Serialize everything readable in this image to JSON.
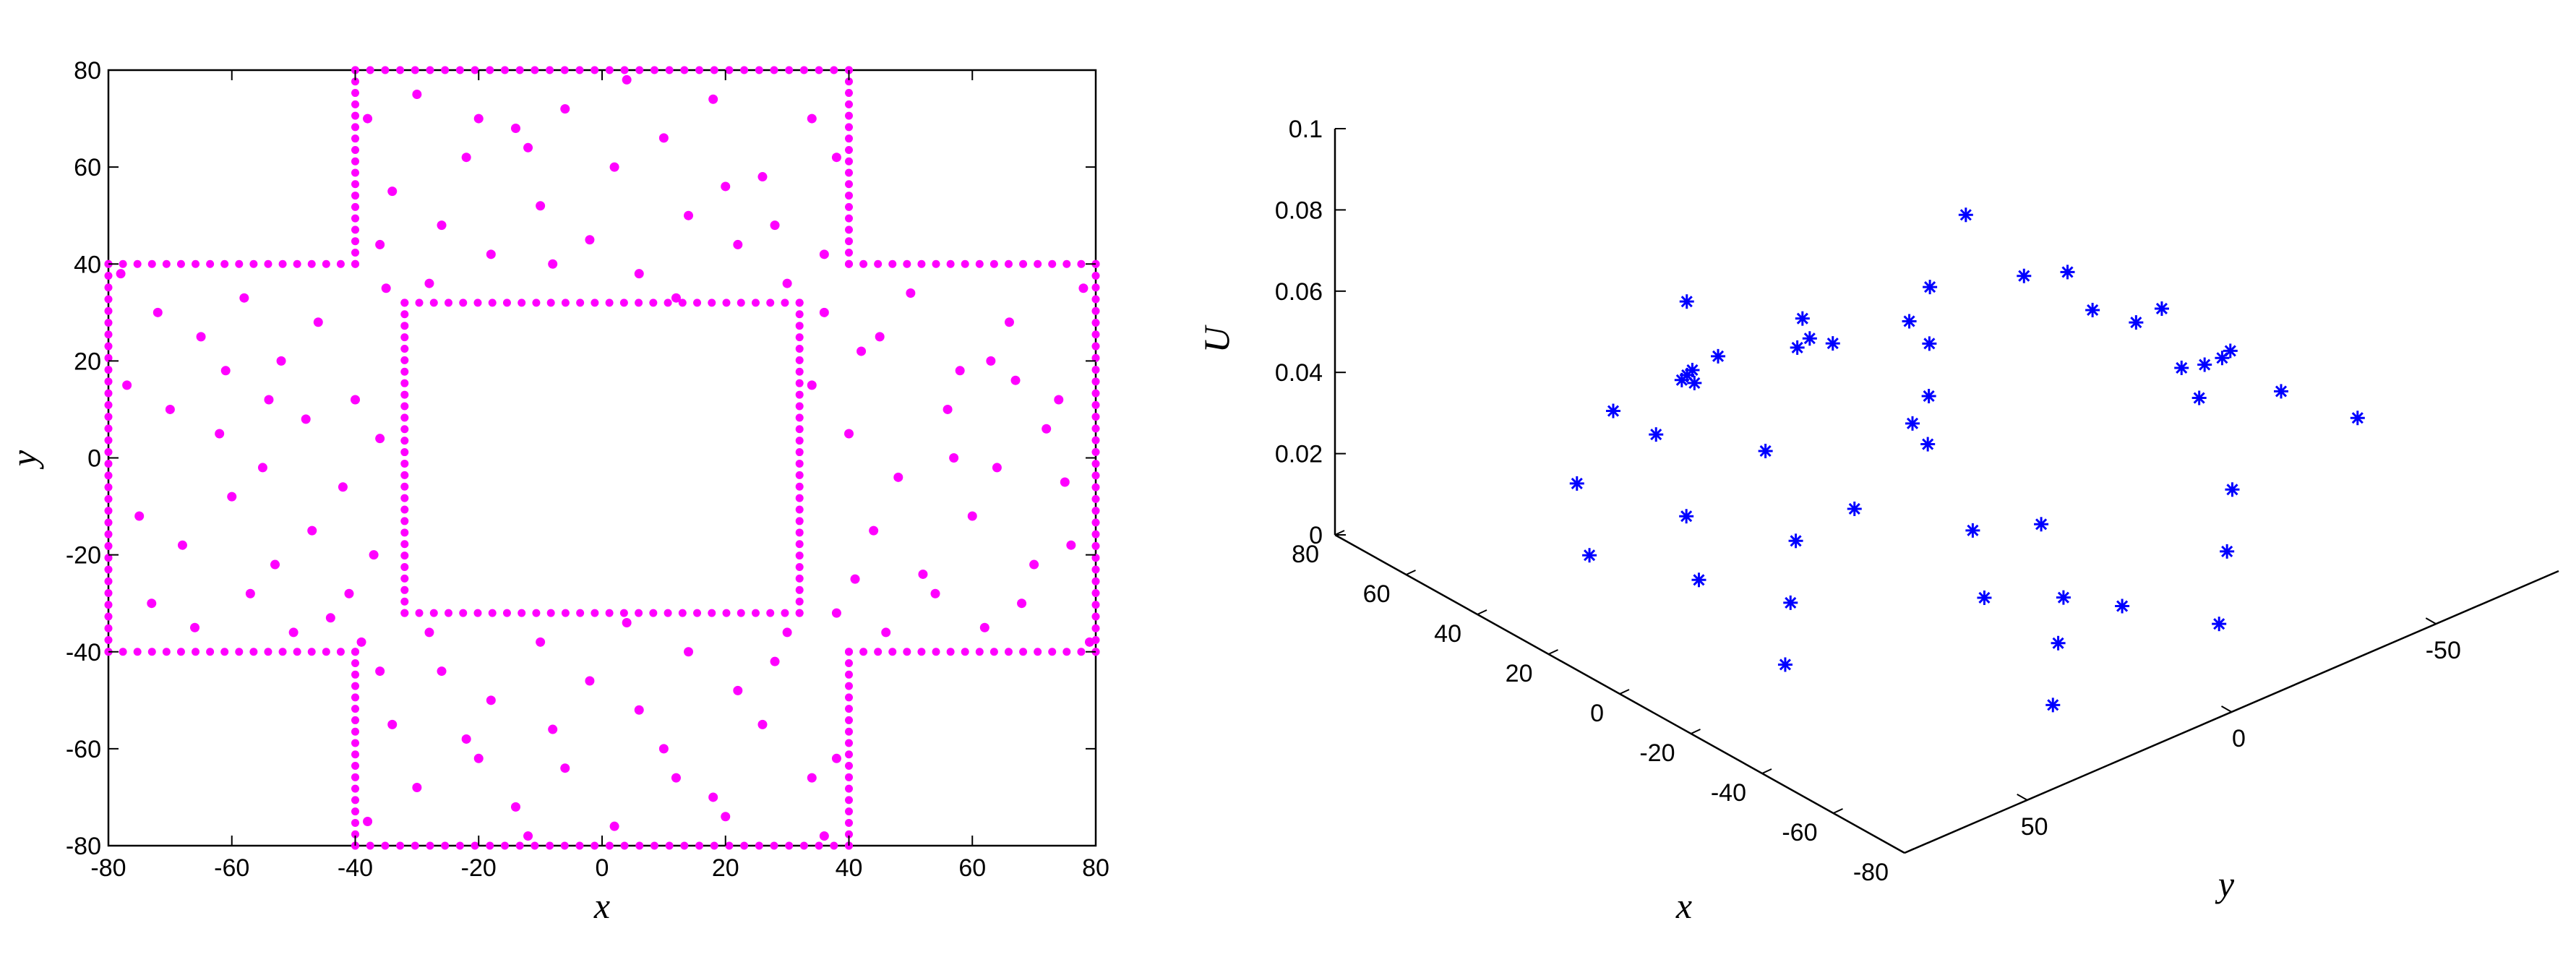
{
  "chart_data": [
    {
      "type": "scatter",
      "title": "",
      "xlabel": "x",
      "ylabel": "y",
      "xlim": [
        -80,
        80
      ],
      "ylim": [
        -80,
        80
      ],
      "xticks": [
        "-80",
        "-60",
        "-40",
        "-20",
        "0",
        "20",
        "40",
        "60",
        "80"
      ],
      "yticks": [
        "-80",
        "-60",
        "-40",
        "-20",
        "0",
        "20",
        "40",
        "60",
        "80"
      ],
      "grid": false,
      "marker": "dot",
      "color": "#ff00ff",
      "domain": "cross-shaped region |x|≤40,|y|≤80 ∪ |x|≤80,|y|≤40 with square hole |x|<32,|y|<32",
      "series": [
        {
          "points": [
            [
              -78,
              38
            ],
            [
              -72,
              30
            ],
            [
              -65,
              25
            ],
            [
              -58,
              33
            ],
            [
              -52,
              20
            ],
            [
              -46,
              28
            ],
            [
              -40,
              12
            ],
            [
              -35,
              35
            ],
            [
              -70,
              10
            ],
            [
              -62,
              5
            ],
            [
              -55,
              -2
            ],
            [
              -48,
              8
            ],
            [
              -42,
              -6
            ],
            [
              -36,
              4
            ],
            [
              -75,
              -12
            ],
            [
              -68,
              -18
            ],
            [
              -60,
              -8
            ],
            [
              -53,
              -22
            ],
            [
              -47,
              -15
            ],
            [
              -41,
              -28
            ],
            [
              -37,
              -20
            ],
            [
              -73,
              -30
            ],
            [
              -66,
              -35
            ],
            [
              -57,
              -28
            ],
            [
              -50,
              -36
            ],
            [
              -44,
              -33
            ],
            [
              -39,
              -38
            ],
            [
              -77,
              15
            ],
            [
              -61,
              18
            ],
            [
              -54,
              12
            ],
            [
              -38,
              70
            ],
            [
              -30,
              75
            ],
            [
              -22,
              62
            ],
            [
              -14,
              68
            ],
            [
              -6,
              72
            ],
            [
              2,
              60
            ],
            [
              10,
              66
            ],
            [
              18,
              74
            ],
            [
              26,
              58
            ],
            [
              34,
              70
            ],
            [
              -26,
              48
            ],
            [
              -18,
              42
            ],
            [
              -10,
              52
            ],
            [
              -2,
              45
            ],
            [
              6,
              38
            ],
            [
              14,
              50
            ],
            [
              22,
              44
            ],
            [
              30,
              36
            ],
            [
              -34,
              55
            ],
            [
              38,
              62
            ],
            [
              -28,
              36
            ],
            [
              -12,
              64
            ],
            [
              4,
              78
            ],
            [
              20,
              56
            ],
            [
              -36,
              44
            ],
            [
              28,
              48
            ],
            [
              -8,
              40
            ],
            [
              12,
              33
            ],
            [
              -20,
              70
            ],
            [
              36,
              42
            ],
            [
              36,
              30
            ],
            [
              42,
              22
            ],
            [
              50,
              34
            ],
            [
              58,
              18
            ],
            [
              66,
              28
            ],
            [
              74,
              12
            ],
            [
              78,
              35
            ],
            [
              40,
              5
            ],
            [
              48,
              -4
            ],
            [
              56,
              10
            ],
            [
              64,
              -2
            ],
            [
              72,
              6
            ],
            [
              44,
              -15
            ],
            [
              52,
              -24
            ],
            [
              60,
              -12
            ],
            [
              68,
              -30
            ],
            [
              76,
              -18
            ],
            [
              38,
              -32
            ],
            [
              46,
              -36
            ],
            [
              54,
              -28
            ],
            [
              62,
              -35
            ],
            [
              70,
              -22
            ],
            [
              34,
              15
            ],
            [
              45,
              25
            ],
            [
              63,
              20
            ],
            [
              75,
              -5
            ],
            [
              57,
              0
            ],
            [
              41,
              -25
            ],
            [
              67,
              16
            ],
            [
              79,
              -38
            ],
            [
              -38,
              -75
            ],
            [
              -30,
              -68
            ],
            [
              -22,
              -58
            ],
            [
              -14,
              -72
            ],
            [
              -6,
              -64
            ],
            [
              2,
              -76
            ],
            [
              10,
              -60
            ],
            [
              18,
              -70
            ],
            [
              26,
              -55
            ],
            [
              34,
              -66
            ],
            [
              -26,
              -44
            ],
            [
              -18,
              -50
            ],
            [
              -10,
              -38
            ],
            [
              -2,
              -46
            ],
            [
              6,
              -52
            ],
            [
              14,
              -40
            ],
            [
              22,
              -48
            ],
            [
              30,
              -36
            ],
            [
              -34,
              -55
            ],
            [
              38,
              -62
            ],
            [
              -28,
              -36
            ],
            [
              -12,
              -78
            ],
            [
              4,
              -34
            ],
            [
              20,
              -74
            ],
            [
              -36,
              -44
            ],
            [
              28,
              -42
            ],
            [
              -8,
              -56
            ],
            [
              12,
              -66
            ],
            [
              -20,
              -62
            ],
            [
              36,
              -78
            ]
          ]
        },
        {
          "name": "boundary",
          "edges": [
            [
              [
                -40,
                80
              ],
              [
                40,
                80
              ]
            ],
            [
              [
                -40,
                -80
              ],
              [
                40,
                -80
              ]
            ],
            [
              [
                -80,
                40
              ],
              [
                -80,
                -40
              ]
            ],
            [
              [
                80,
                40
              ],
              [
                80,
                -40
              ]
            ],
            [
              [
                -40,
                80
              ],
              [
                -40,
                40
              ]
            ],
            [
              [
                40,
                80
              ],
              [
                40,
                40
              ]
            ],
            [
              [
                -40,
                -80
              ],
              [
                -40,
                -40
              ]
            ],
            [
              [
                40,
                -80
              ],
              [
                40,
                -40
              ]
            ],
            [
              [
                -80,
                40
              ],
              [
                -40,
                40
              ]
            ],
            [
              [
                40,
                40
              ],
              [
                80,
                40
              ]
            ],
            [
              [
                -80,
                -40
              ],
              [
                -40,
                -40
              ]
            ],
            [
              [
                40,
                -40
              ],
              [
                80,
                -40
              ]
            ],
            [
              [
                -32,
                32
              ],
              [
                32,
                32
              ]
            ],
            [
              [
                -32,
                -32
              ],
              [
                32,
                -32
              ]
            ],
            [
              [
                -32,
                32
              ],
              [
                -32,
                -32
              ]
            ],
            [
              [
                32,
                32
              ],
              [
                32,
                -32
              ]
            ]
          ]
        }
      ]
    },
    {
      "type": "scatter",
      "title": "",
      "xlabel": "x",
      "ylabel": "y",
      "zlabel": "U",
      "xlim": [
        -80,
        80
      ],
      "ylim": [
        -80,
        80
      ],
      "zlim": [
        0,
        0.1
      ],
      "xticks": [
        "-80",
        "-60",
        "-40",
        "-20",
        "0",
        "20",
        "40",
        "60",
        "80"
      ],
      "yticks": [
        "-50",
        "0",
        "50"
      ],
      "zticks": [
        "0",
        "0.02",
        "0.04",
        "0.06",
        "0.08",
        "0.1"
      ],
      "grid": false,
      "marker": "asterisk",
      "color": "#0000ff",
      "series": [
        {
          "points": [
            [
              -70,
              35,
              0.012
            ],
            [
              -60,
              25,
              0.018
            ],
            [
              -50,
              15,
              0.02
            ],
            [
              -45,
              30,
              0.024
            ],
            [
              -55,
              5,
              0.016
            ],
            [
              -65,
              -10,
              0.01
            ],
            [
              -50,
              -25,
              0.014
            ],
            [
              -40,
              -35,
              0.02
            ],
            [
              -38,
              10,
              0.03
            ],
            [
              -36,
              25,
              0.034
            ],
            [
              -35,
              70,
              0.02
            ],
            [
              -25,
              60,
              0.026
            ],
            [
              -15,
              50,
              0.032
            ],
            [
              -5,
              65,
              0.024
            ],
            [
              10,
              55,
              0.028
            ],
            [
              20,
              70,
              0.02
            ],
            [
              30,
              45,
              0.034
            ],
            [
              35,
              60,
              0.026
            ],
            [
              -20,
              40,
              0.038
            ],
            [
              5,
              40,
              0.04
            ],
            [
              40,
              30,
              0.036
            ],
            [
              50,
              20,
              0.028
            ],
            [
              60,
              10,
              0.02
            ],
            [
              70,
              -5,
              0.012
            ],
            [
              55,
              -20,
              0.016
            ],
            [
              45,
              -30,
              0.022
            ],
            [
              65,
              25,
              0.014
            ],
            [
              75,
              -30,
              0.008
            ],
            [
              42,
              0,
              0.03
            ],
            [
              50,
              -10,
              0.024
            ],
            [
              -35,
              -70,
              0.02
            ],
            [
              -25,
              -60,
              0.026
            ],
            [
              -15,
              -50,
              0.032
            ],
            [
              -5,
              -65,
              0.024
            ],
            [
              10,
              -55,
              0.028
            ],
            [
              20,
              -70,
              0.02
            ],
            [
              30,
              -45,
              0.034
            ],
            [
              35,
              -60,
              0.026
            ],
            [
              -20,
              -40,
              0.038
            ],
            [
              5,
              -40,
              0.04
            ],
            [
              -36,
              36,
              0.06
            ],
            [
              -34,
              34,
              0.07
            ],
            [
              -33,
              33,
              0.082
            ],
            [
              -32,
              32,
              0.095
            ],
            [
              -36,
              -36,
              0.05
            ],
            [
              -33,
              -33,
              0.04
            ],
            [
              36,
              -36,
              0.05
            ],
            [
              34,
              34,
              0.06
            ],
            [
              33,
              33,
              0.04
            ],
            [
              -34,
              38,
              0.065
            ]
          ]
        }
      ]
    }
  ]
}
